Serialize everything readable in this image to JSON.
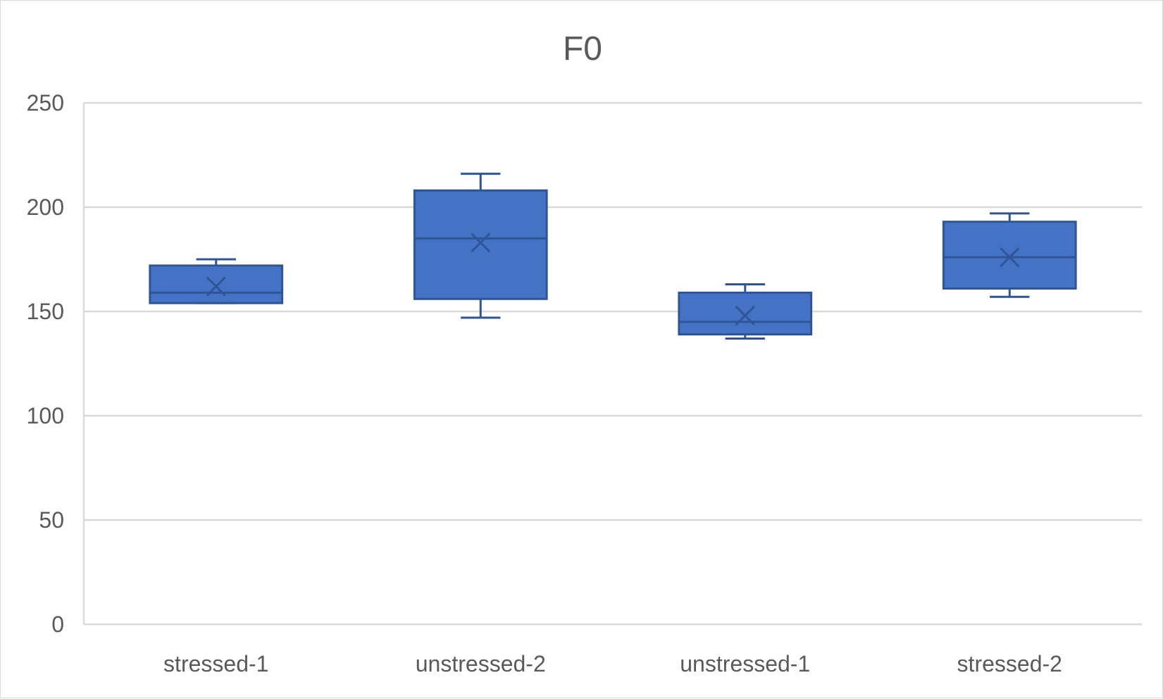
{
  "chart_data": {
    "type": "box",
    "title": "F0",
    "xlabel": "",
    "ylabel": "",
    "ylim": [
      0,
      250
    ],
    "yticks": [
      0,
      50,
      100,
      150,
      200,
      250
    ],
    "grid": true,
    "categories": [
      "stressed-1",
      "unstressed-2",
      "unstressed-1",
      "stressed-2"
    ],
    "boxes": [
      {
        "category": "stressed-1",
        "min": 154,
        "q1": 154,
        "median": 159,
        "q3": 172,
        "max": 175,
        "mean": 162
      },
      {
        "category": "unstressed-2",
        "min": 147,
        "q1": 156,
        "median": 185,
        "q3": 208,
        "max": 216,
        "mean": 183
      },
      {
        "category": "unstressed-1",
        "min": 137,
        "q1": 139,
        "median": 145,
        "q3": 159,
        "max": 163,
        "mean": 148
      },
      {
        "category": "stressed-2",
        "min": 157,
        "q1": 161,
        "median": 176,
        "q3": 193,
        "max": 197,
        "mean": 176
      }
    ],
    "colors": {
      "fill": "#4472c4",
      "stroke": "#2f5597",
      "grid": "#d9d9d9",
      "text": "#595959"
    }
  }
}
